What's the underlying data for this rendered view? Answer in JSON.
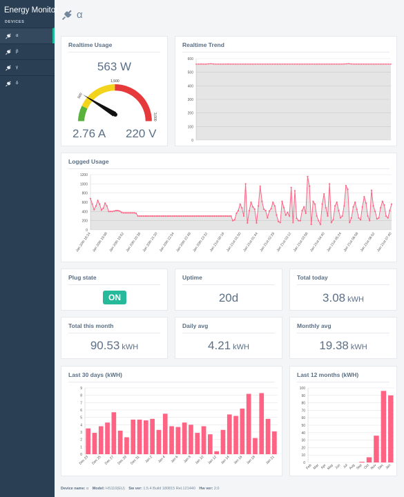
{
  "sidebar": {
    "brand": "Energy Monitor",
    "section_label": "DEVICES",
    "items": [
      {
        "label": "α",
        "icon": "plug-icon"
      },
      {
        "label": "β",
        "icon": "plug-icon"
      },
      {
        "label": "γ",
        "icon": "plug-icon"
      },
      {
        "label": "δ",
        "icon": "plug-icon"
      }
    ]
  },
  "page": {
    "title": "α",
    "icon": "plug-icon"
  },
  "colors": {
    "accent": "#1abb9c",
    "chart_red": "#ff6384",
    "gauge_green": "#59b33b",
    "gauge_yellow": "#f3d41c",
    "gauge_red": "#e6393b"
  },
  "realtime": {
    "title": "Realtime Usage",
    "power": "563 W",
    "current": "2.76 A",
    "voltage": "220 V",
    "gauge": {
      "min": 0,
      "max": 3000,
      "value": 563,
      "ticks": [
        "500",
        "1,500",
        "3,000"
      ],
      "green_to": 500,
      "yellow_to": 1500
    }
  },
  "trend": {
    "title": "Realtime Trend"
  },
  "logged": {
    "title": "Logged Usage"
  },
  "plug_state": {
    "title": "Plug state",
    "value": "ON"
  },
  "uptime": {
    "title": "Uptime",
    "value": "20d"
  },
  "total_today": {
    "title": "Total today",
    "value": "3.08",
    "unit": "kWH"
  },
  "total_month": {
    "title": "Total this month",
    "value": "90.53",
    "unit": "kWH"
  },
  "daily_avg": {
    "title": "Daily avg",
    "value": "4.21",
    "unit": "kWH"
  },
  "monthly_avg": {
    "title": "Monthly avg",
    "value": "19.38",
    "unit": "kWH"
  },
  "last30": {
    "title": "Last 30 days (kWH)"
  },
  "last12": {
    "title": "Last 12 months (kWH)"
  },
  "footer": {
    "device_label": "Device name:",
    "device": "α",
    "model_label": "Model:",
    "model": "HS110(EU)",
    "sw_label": "Sw ver:",
    "sw": "1.5.4 Build 180815 Rel.121440",
    "hw_label": "Hw ver:",
    "hw": "2.0"
  },
  "chart_data": [
    {
      "id": "trend",
      "type": "line",
      "y_ticks": [
        0,
        100,
        200,
        300,
        400,
        500,
        600
      ],
      "ylim": [
        0,
        600
      ],
      "values": [
        560,
        560,
        561,
        560,
        560,
        562,
        563,
        561,
        560,
        560,
        560,
        560,
        560,
        561,
        560,
        560,
        560,
        560,
        560,
        560,
        560,
        560,
        560,
        560,
        560,
        560,
        560,
        560,
        560,
        560,
        560,
        560,
        560,
        560,
        560,
        560,
        560,
        560,
        560,
        560,
        560,
        560,
        560,
        560,
        560,
        560,
        560,
        560,
        560,
        560,
        560,
        560,
        560,
        560,
        560,
        560,
        560,
        560,
        560,
        560,
        561,
        562,
        563,
        561,
        560,
        560,
        560,
        560,
        560,
        560,
        560,
        560,
        560,
        560,
        560,
        560,
        560,
        560,
        560,
        560
      ]
    },
    {
      "id": "logged",
      "type": "line",
      "y_ticks": [
        0,
        200,
        400,
        600,
        800,
        1000,
        1200
      ],
      "ylim": [
        0,
        1200
      ],
      "x_labels": [
        "Jan 20th 18:24",
        "Jan 20th 19:08",
        "Jan 20th 19:52",
        "Jan 20th 20:36",
        "Jan 20th 21:20",
        "Jan 20th 22:04",
        "Jan 20th 22:48",
        "Jan 20th 23:32",
        "Jan 21st 00:16",
        "Jan 21st 01:00",
        "Jan 21st 01:44",
        "Jan 21st 02:28",
        "Jan 21st 03:12",
        "Jan 21st 03:56",
        "Jan 21st 04:40",
        "Jan 21st 05:24",
        "Jan 21st 06:08",
        "Jan 21st 06:52",
        "Jan 21st 07:40"
      ],
      "values": [
        680,
        560,
        440,
        520,
        640,
        560,
        430,
        470,
        580,
        520,
        400,
        400,
        400,
        410,
        420,
        420,
        410,
        380,
        370,
        370,
        370,
        370,
        370,
        370,
        370,
        360,
        300,
        300,
        300,
        300,
        300,
        300,
        300,
        300,
        300,
        300,
        300,
        300,
        300,
        300,
        300,
        300,
        300,
        300,
        300,
        300,
        300,
        300,
        300,
        300,
        300,
        300,
        300,
        300,
        300,
        300,
        300,
        300,
        300,
        300,
        300,
        300,
        300,
        300,
        300,
        300,
        300,
        300,
        300,
        300,
        300,
        300,
        300,
        300,
        300,
        300,
        300,
        300,
        200,
        220,
        360,
        420,
        560,
        480,
        300,
        1000,
        150,
        420,
        600,
        500,
        450,
        150,
        520,
        950,
        620,
        450,
        420,
        260,
        410,
        460,
        600,
        520,
        320,
        180,
        160,
        620,
        480,
        320,
        380,
        300,
        920,
        160,
        850,
        250,
        200,
        200,
        420,
        500,
        360,
        1160,
        950,
        120,
        620,
        560,
        300,
        200,
        120,
        560,
        780,
        480,
        300,
        1000,
        160,
        220,
        520,
        600,
        420,
        260,
        300,
        520,
        960,
        880,
        160,
        260,
        500,
        600,
        440,
        260,
        220,
        500,
        720,
        580,
        300,
        200,
        860,
        520,
        400,
        240,
        260,
        480,
        620,
        540,
        300,
        260,
        420,
        560
      ]
    },
    {
      "id": "last30",
      "type": "bar",
      "y_ticks": [
        0,
        1,
        2,
        3,
        4,
        5,
        6,
        7,
        8,
        9
      ],
      "ylim": [
        0,
        9
      ],
      "categories": [
        "Dec 23",
        "Dec 24",
        "Dec 25",
        "Dec 26",
        "Dec 27",
        "Dec 28",
        "Dec 29",
        "Dec 30",
        "Dec 31",
        "Jan 1",
        "Jan 2",
        "Jan 3",
        "Jan 4",
        "Jan 5",
        "Jan 6",
        "Jan 7",
        "Jan 8",
        "Jan 9",
        "Jan 10",
        "Jan 11",
        "Jan 12",
        "Jan 13",
        "Jan 14",
        "Jan 15",
        "Jan 16",
        "Jan 17",
        "Jan 18",
        "Jan 19",
        "Jan 20",
        "Jan 21"
      ],
      "tick_labels": [
        "Dec 23",
        "Dec 25",
        "Dec 27",
        "Dec 29",
        "Dec 31",
        "Jan 2",
        "Jan 4",
        "Jan 6",
        "Jan 8",
        "Jan 10",
        "Jan 12",
        "Jan 14",
        "Jan 16",
        "Jan 18",
        "Jan 21"
      ],
      "values": [
        3.5,
        2.9,
        3.8,
        4.3,
        5.7,
        3.2,
        2.3,
        4.7,
        4.7,
        4.6,
        4.8,
        3.3,
        5.5,
        3.8,
        3.7,
        4.3,
        4.0,
        2.9,
        3.8,
        2.7,
        0.4,
        3.3,
        5.4,
        5.2,
        6.2,
        8.2,
        2.2,
        8.3,
        4.8,
        3.1
      ]
    },
    {
      "id": "last12",
      "type": "bar",
      "y_ticks": [
        0,
        10,
        20,
        30,
        40,
        50,
        60,
        70,
        80,
        90,
        100
      ],
      "ylim": [
        0,
        100
      ],
      "categories": [
        "Feb",
        "Mar",
        "Apr",
        "May",
        "Jun",
        "Jul",
        "Aug",
        "Sep",
        "Oct",
        "Nov",
        "Dec",
        "Jan"
      ],
      "values": [
        0,
        0,
        0,
        0,
        0,
        0,
        0,
        1,
        7,
        36,
        96,
        90
      ]
    }
  ]
}
